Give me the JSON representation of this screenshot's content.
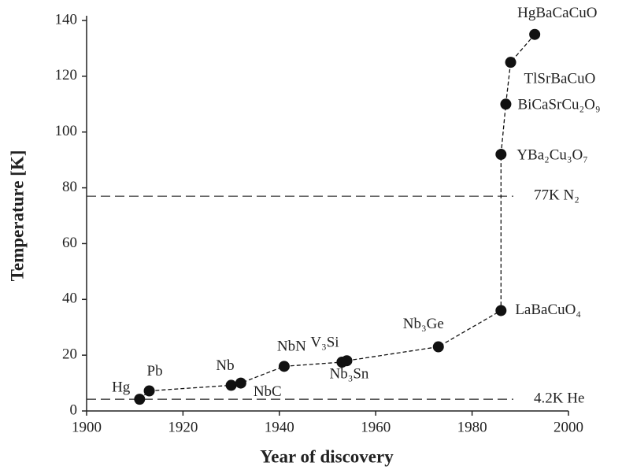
{
  "chart_data": {
    "type": "line",
    "xlabel": "Year of discovery",
    "ylabel": "Temperature [K]",
    "x": [
      1911,
      1913,
      1930,
      1932,
      1941,
      1953,
      1954,
      1973,
      1986,
      1986,
      1987,
      1988,
      1993
    ],
    "series": [
      {
        "color": "#111111",
        "values": [
          4.2,
          7.2,
          9.2,
          10,
          16,
          17.5,
          18,
          23,
          36,
          92,
          110,
          125,
          135
        ],
        "point_labels": [
          "Hg",
          "Pb",
          "Nb",
          "NbC",
          "NbN",
          "V₃Si",
          "Nb₃Sn",
          "Nb₃Ge",
          "LaBaCuO₄",
          "YBa₂Cu₃O₇",
          "BiCaSrCu₂O₉",
          "TlSrBaCuO",
          "HgBaCaCuO"
        ]
      }
    ],
    "reference_lines": [
      {
        "value": 77,
        "label": "77K N₂"
      },
      {
        "value": 4.2,
        "label": "4.2K He"
      }
    ],
    "xlim": [
      1900,
      2000
    ],
    "xticks": [
      1900,
      1920,
      1940,
      1960,
      1980,
      2000
    ],
    "ylim": [
      0,
      140
    ],
    "yticks": [
      0,
      20,
      40,
      60,
      80,
      100,
      120,
      140
    ],
    "grid": false
  }
}
